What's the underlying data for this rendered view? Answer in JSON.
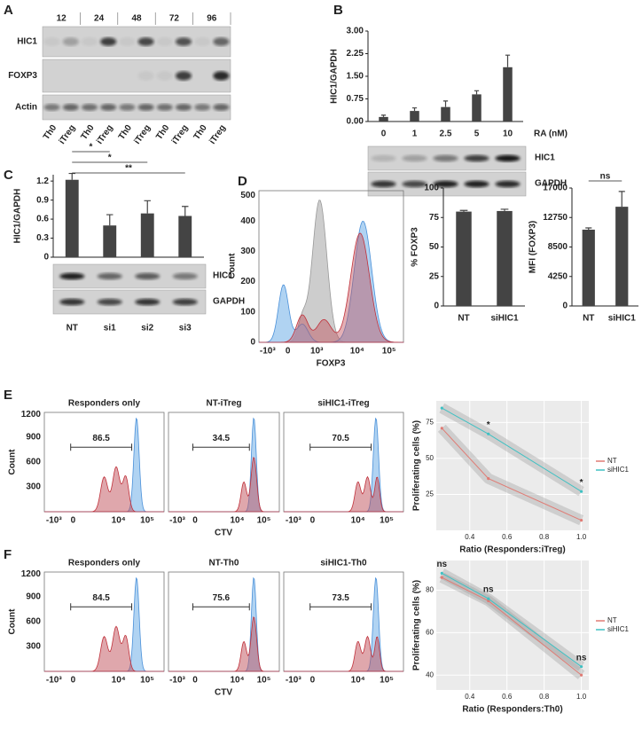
{
  "panel_labels": [
    "A",
    "B",
    "C",
    "D",
    "E",
    "F"
  ],
  "blot_a": {
    "times": [
      "12",
      "24",
      "48",
      "72",
      "96"
    ],
    "rows": [
      "HIC1",
      "FOXP3",
      "Actin"
    ],
    "lanes": [
      "Th0",
      "iTreg",
      "Th0",
      "iTreg",
      "Th0",
      "iTreg",
      "Th0",
      "iTreg",
      "Th0",
      "iTreg"
    ]
  },
  "blot_b": {
    "rows": [
      "HIC1",
      "GAPDH"
    ]
  },
  "blot_c": {
    "rows": [
      "HIC1",
      "GAPDH"
    ]
  },
  "flow_d": {
    "xlabel": "FOXP3",
    "ylabel": "Count",
    "yticks": [
      "0",
      "100",
      "200",
      "300",
      "400",
      "500"
    ],
    "xticks": [
      "-10³",
      "0",
      "10³",
      "10⁴",
      "10⁵"
    ]
  },
  "flow_e": {
    "xlabel": "CTV",
    "ylabel": "Count",
    "yticks": [
      "300",
      "600",
      "900",
      "1200"
    ],
    "xticks": [
      "-10³",
      "0",
      "10⁴",
      "10⁵"
    ],
    "panels": [
      {
        "title": "Responders only",
        "gate": 86.5
      },
      {
        "title": "NT-iTreg",
        "gate": 34.5
      },
      {
        "title": "siHIC1-iTreg",
        "gate": 70.5
      }
    ]
  },
  "flow_f": {
    "xlabel": "CTV",
    "ylabel": "Count",
    "yticks": [
      "300",
      "600",
      "900",
      "1200"
    ],
    "xticks": [
      "-10³",
      "0",
      "10⁴",
      "10⁵"
    ],
    "panels": [
      {
        "title": "Responders only",
        "gate": 84.5
      },
      {
        "title": "NT-Th0",
        "gate": 75.6
      },
      {
        "title": "siHIC1-Th0",
        "gate": 73.5
      }
    ]
  },
  "chart_data": [
    {
      "type": "bar",
      "ylabel": "HIC1/GAPDH",
      "xlabel": "RA (nM)",
      "categories": [
        "0",
        "1",
        "2.5",
        "5",
        "10"
      ],
      "values": [
        0.15,
        0.35,
        0.48,
        0.9,
        1.8
      ],
      "errors": [
        0.06,
        0.1,
        0.2,
        0.12,
        0.4
      ],
      "color": "#444444",
      "ylim": [
        0,
        3
      ],
      "yticks": [
        {
          "value": 0,
          "label": "0.00"
        },
        {
          "value": 0.75,
          "label": "0.75"
        },
        {
          "value": 1.5,
          "label": "1.50"
        },
        {
          "value": 2.25,
          "label": "2.25"
        },
        {
          "value": 3,
          "label": "3.00"
        }
      ]
    },
    {
      "type": "bar",
      "ylabel": "HIC1/GAPDH",
      "categories": [
        "NT",
        "si1",
        "si2",
        "si3"
      ],
      "values": [
        1.22,
        0.5,
        0.69,
        0.65
      ],
      "errors": [
        0.1,
        0.17,
        0.2,
        0.15
      ],
      "color": "#444444",
      "ylim": [
        0,
        1.3
      ],
      "yticks": [
        0,
        0.3,
        0.6,
        0.9,
        1.2
      ],
      "annotations": [
        "*",
        "*",
        "**"
      ]
    },
    {
      "type": "bar",
      "ylabel": "% FOXP3",
      "categories": [
        "NT",
        "siHIC1"
      ],
      "values": [
        80,
        80.5
      ],
      "errors": [
        1,
        1.5
      ],
      "color": "#444444",
      "ylim": [
        0,
        100
      ],
      "yticks": [
        0,
        25,
        50,
        75,
        100
      ]
    },
    {
      "type": "bar",
      "ylabel": "MFI (FOXP3)",
      "categories": [
        "NT",
        "siHIC1"
      ],
      "values": [
        11000,
        14300
      ],
      "errors": [
        250,
        2200
      ],
      "color": "#444444",
      "ylim": [
        0,
        17000
      ],
      "yticks": [
        0,
        4250,
        8500,
        12750,
        17000
      ],
      "annotations": [
        "ns"
      ]
    },
    {
      "type": "line",
      "xlabel": "Ratio (Responders:iTreg)",
      "ylabel": "Proliferating cells (%)",
      "x": [
        0.25,
        0.5,
        1.0
      ],
      "series": [
        {
          "name": "NT",
          "color": "#e07b74",
          "values": [
            71,
            36,
            7
          ]
        },
        {
          "name": "siHIC1",
          "color": "#3fc1c3",
          "values": [
            85,
            67,
            27
          ]
        }
      ],
      "xlim": [
        0.22,
        1.04
      ],
      "xticks": [
        0.4,
        0.6,
        0.8,
        {
          "value": 1,
          "label": "1.0"
        }
      ],
      "ylim": [
        0,
        90
      ],
      "yticks": [
        25,
        50,
        75
      ],
      "grid": true,
      "legend": "right",
      "annotations": [
        null,
        "*",
        "*"
      ]
    },
    {
      "type": "line",
      "xlabel": "Ratio (Responders:Th0)",
      "ylabel": "Proliferating cells (%)",
      "x": [
        0.25,
        0.5,
        1.0
      ],
      "series": [
        {
          "name": "NT",
          "color": "#e07b74",
          "values": [
            86,
            75,
            40
          ]
        },
        {
          "name": "siHIC1",
          "color": "#3fc1c3",
          "values": [
            88,
            76,
            44
          ]
        }
      ],
      "xlim": [
        0.22,
        1.04
      ],
      "xticks": [
        0.4,
        0.6,
        0.8,
        {
          "value": 1,
          "label": "1.0"
        }
      ],
      "ylim": [
        33,
        94
      ],
      "yticks": [
        40,
        60,
        80
      ],
      "grid": true,
      "legend": "right",
      "annotations": [
        "ns",
        "ns",
        "ns"
      ]
    }
  ]
}
